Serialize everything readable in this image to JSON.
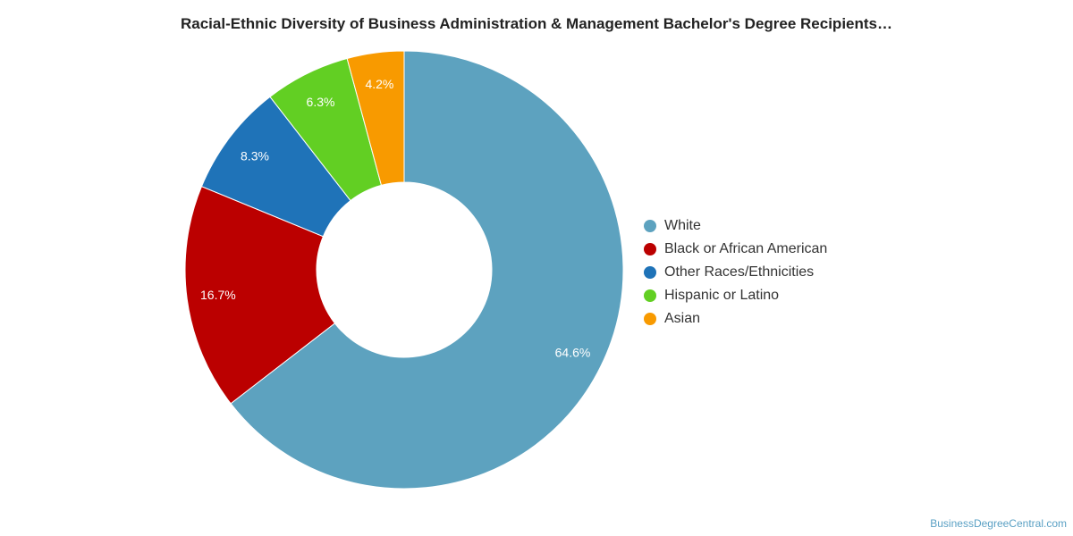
{
  "chart_data": {
    "type": "pie",
    "title": "Racial-Ethnic Diversity of Business Administration & Management Bachelor's Degree Recipients…",
    "categories": [
      "White",
      "Black or African American",
      "Other Races/Ethnicities",
      "Hispanic or Latino",
      "Asian"
    ],
    "values": [
      64.6,
      16.7,
      8.3,
      6.3,
      4.2
    ],
    "labels": [
      "64.6%",
      "16.7%",
      "8.3%",
      "6.3%",
      "4.2%"
    ],
    "colors": [
      "#5da2bf",
      "#bb0000",
      "#1f73b8",
      "#62cf23",
      "#f89a00"
    ],
    "legend_position": "right",
    "hole": "donut"
  },
  "watermark": "BusinessDegreeCentral.com"
}
